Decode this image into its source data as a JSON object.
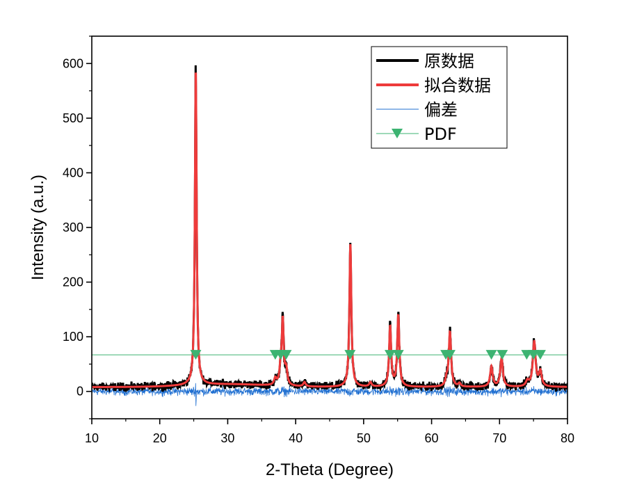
{
  "chart_data": {
    "type": "line",
    "xlabel": "2-Theta (Degree)",
    "ylabel": "Intensity (a.u.)",
    "xlim": [
      10,
      80
    ],
    "ylim": [
      -50,
      650
    ],
    "xticks": [
      10,
      20,
      30,
      40,
      50,
      60,
      70,
      80
    ],
    "yticks": [
      0,
      100,
      200,
      300,
      400,
      500,
      600
    ],
    "grid": false,
    "legend_position": "top-right",
    "baseline": 8,
    "background_hump": {
      "center": 30,
      "width": 8,
      "height": 5
    },
    "peaks": [
      {
        "x": 25.3,
        "height": 580,
        "width": 0.15
      },
      {
        "x": 37.0,
        "height": 12,
        "width": 0.2
      },
      {
        "x": 37.8,
        "height": 32,
        "width": 0.2
      },
      {
        "x": 38.1,
        "height": 115,
        "width": 0.16
      },
      {
        "x": 38.6,
        "height": 28,
        "width": 0.2
      },
      {
        "x": 41.3,
        "height": 8,
        "width": 0.2
      },
      {
        "x": 48.05,
        "height": 262,
        "width": 0.17
      },
      {
        "x": 51.0,
        "height": 8,
        "width": 0.2
      },
      {
        "x": 53.9,
        "height": 110,
        "width": 0.18
      },
      {
        "x": 55.1,
        "height": 130,
        "width": 0.18
      },
      {
        "x": 62.2,
        "height": 12,
        "width": 0.2
      },
      {
        "x": 62.7,
        "height": 100,
        "width": 0.2
      },
      {
        "x": 64.1,
        "height": 6,
        "width": 0.2
      },
      {
        "x": 68.8,
        "height": 37,
        "width": 0.22
      },
      {
        "x": 70.3,
        "height": 52,
        "width": 0.22
      },
      {
        "x": 74.1,
        "height": 10,
        "width": 0.25
      },
      {
        "x": 75.1,
        "height": 82,
        "width": 0.24
      },
      {
        "x": 76.0,
        "height": 27,
        "width": 0.24
      }
    ],
    "series": [
      {
        "name": "原数据",
        "color": "#000000",
        "role": "raw"
      },
      {
        "name": "拟合数据",
        "color": "#ee3b3b",
        "role": "fit"
      },
      {
        "name": "偏差",
        "color": "#1f6fd1",
        "role": "residual",
        "offset": 0
      },
      {
        "name": "PDF",
        "color": "#3cb371",
        "role": "pdf",
        "level": 67,
        "markers": [
          25.3,
          37.0,
          37.8,
          38.6,
          48.0,
          53.9,
          55.1,
          62.1,
          62.7,
          68.8,
          70.4,
          74.0,
          75.0,
          76.0
        ]
      }
    ]
  }
}
